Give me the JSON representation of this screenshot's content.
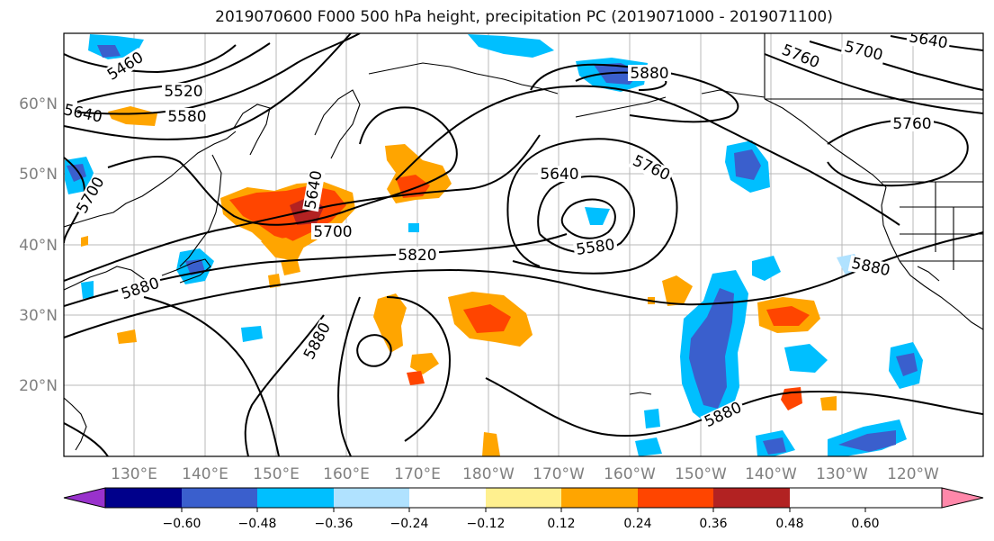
{
  "title": "2019070600 F000 500 hPa height, precipitation PC (2019071000 - 2019071100)",
  "map": {
    "lat_labels": [
      "60°N",
      "50°N",
      "40°N",
      "30°N",
      "20°N"
    ],
    "lon_labels": [
      "130°E",
      "140°E",
      "150°E",
      "160°E",
      "170°E",
      "180°W",
      "170°W",
      "160°W",
      "150°W",
      "140°W",
      "130°W",
      "120°W"
    ],
    "contour_labels": [
      "5460",
      "5520",
      "5580",
      "5640",
      "5640",
      "5700",
      "5700",
      "5820",
      "5880",
      "5640",
      "5580",
      "5760",
      "5880",
      "5760",
      "5700",
      "5640",
      "5760",
      "5880",
      "5880",
      "5880"
    ]
  },
  "colorbar": {
    "ticks": [
      "−0.60",
      "−0.48",
      "−0.36",
      "−0.24",
      "−0.12",
      "0.12",
      "0.24",
      "0.36",
      "0.48",
      "0.60"
    ],
    "colors": [
      "#9932cc",
      "#00008b",
      "#3a5fcd",
      "#00bfff",
      "#b0e2ff",
      "#ffffff",
      "#fff08f",
      "#ffa500",
      "#ff4500",
      "#b22222",
      "#ff88aa"
    ]
  }
}
